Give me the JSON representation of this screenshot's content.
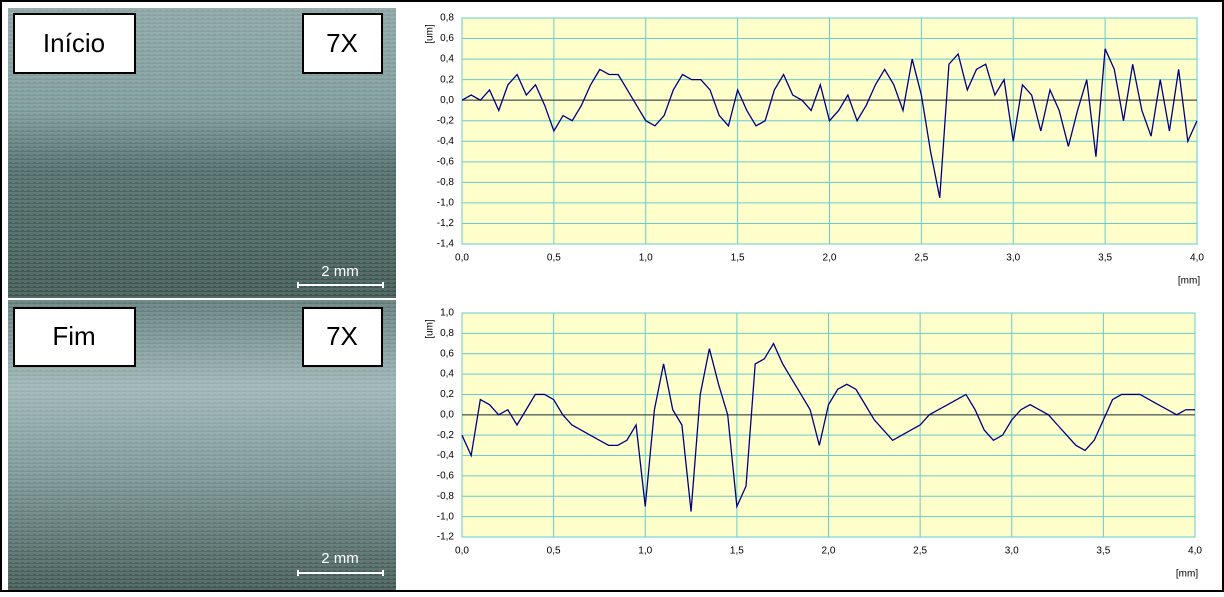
{
  "images": [
    {
      "label": "Início",
      "magnification": "7X",
      "scale": "2 mm"
    },
    {
      "label": "Fim",
      "magnification": "7X",
      "scale": "2 mm"
    }
  ],
  "chart_data": [
    {
      "type": "line",
      "ylabel": "[um]",
      "xlabel": "[mm]",
      "grid": true,
      "xlim": [
        0,
        4
      ],
      "ylim": [
        -1.4,
        0.8
      ],
      "xticks": [
        {
          "value": 0,
          "label": "0,0"
        },
        {
          "value": 0.5,
          "label": "0,5"
        },
        {
          "value": 1,
          "label": "1,0"
        },
        {
          "value": 1.5,
          "label": "1,5"
        },
        {
          "value": 2,
          "label": "2,0"
        },
        {
          "value": 2.5,
          "label": "2,5"
        },
        {
          "value": 3,
          "label": "3,0"
        },
        {
          "value": 3.5,
          "label": "3,5"
        },
        {
          "value": 4,
          "label": "4,0"
        }
      ],
      "yticks": [
        {
          "value": -1.4,
          "label": "-1,4"
        },
        {
          "value": -1.2,
          "label": "-1,2"
        },
        {
          "value": -1,
          "label": "-1,0"
        },
        {
          "value": -0.8,
          "label": "-0,8"
        },
        {
          "value": -0.6,
          "label": "-0,6"
        },
        {
          "value": -0.4,
          "label": "-0,4"
        },
        {
          "value": -0.2,
          "label": "-0,2"
        },
        {
          "value": 0,
          "label": "0,0"
        },
        {
          "value": 0.2,
          "label": "0,2"
        },
        {
          "value": 0.4,
          "label": "0,4"
        },
        {
          "value": 0.6,
          "label": "0,6"
        },
        {
          "value": 0.8,
          "label": "0,8"
        }
      ],
      "x": [
        0,
        0.05,
        0.1,
        0.15,
        0.2,
        0.25,
        0.3,
        0.35,
        0.4,
        0.45,
        0.5,
        0.55,
        0.6,
        0.65,
        0.7,
        0.75,
        0.8,
        0.85,
        0.9,
        0.95,
        1,
        1.05,
        1.1,
        1.15,
        1.2,
        1.25,
        1.3,
        1.35,
        1.4,
        1.45,
        1.5,
        1.55,
        1.6,
        1.65,
        1.7,
        1.75,
        1.8,
        1.85,
        1.9,
        1.95,
        2,
        2.05,
        2.1,
        2.15,
        2.2,
        2.25,
        2.3,
        2.35,
        2.4,
        2.45,
        2.5,
        2.55,
        2.6,
        2.65,
        2.7,
        2.75,
        2.8,
        2.85,
        2.9,
        2.95,
        3,
        3.05,
        3.1,
        3.15,
        3.2,
        3.25,
        3.3,
        3.35,
        3.4,
        3.45,
        3.5,
        3.55,
        3.6,
        3.65,
        3.7,
        3.75,
        3.8,
        3.85,
        3.9,
        3.95,
        4
      ],
      "series": [
        {
          "color": "#000080",
          "values": [
            0,
            0.05,
            0,
            0.1,
            -0.1,
            0.15,
            0.25,
            0.05,
            0.15,
            -0.05,
            -0.3,
            -0.15,
            -0.2,
            -0.05,
            0.15,
            0.3,
            0.25,
            0.25,
            0.1,
            -0.05,
            -0.2,
            -0.25,
            -0.15,
            0.1,
            0.25,
            0.2,
            0.2,
            0.1,
            -0.15,
            -0.25,
            0.1,
            -0.1,
            -0.25,
            -0.2,
            0.1,
            0.25,
            0.05,
            0,
            -0.1,
            0.15,
            -0.2,
            -0.1,
            0.05,
            -0.2,
            -0.05,
            0.15,
            0.3,
            0.15,
            -0.1,
            0.4,
            0.05,
            -0.5,
            -0.95,
            0.35,
            0.45,
            0.1,
            0.3,
            0.35,
            0.05,
            0.2,
            -0.4,
            0.15,
            0.05,
            -0.3,
            0.1,
            -0.1,
            -0.45,
            -0.1,
            0.2,
            -0.55,
            0.5,
            0.3,
            -0.2,
            0.35,
            -0.1,
            -0.35,
            0.2,
            -0.3,
            0.3,
            -0.4,
            -0.2
          ]
        }
      ]
    },
    {
      "type": "line",
      "ylabel": "[um]",
      "xlabel": "[mm]",
      "grid": true,
      "xlim": [
        0,
        4
      ],
      "ylim": [
        -1.2,
        1
      ],
      "xticks": [
        {
          "value": 0,
          "label": "0,0"
        },
        {
          "value": 0.5,
          "label": "0,5"
        },
        {
          "value": 1,
          "label": "1,0"
        },
        {
          "value": 1.5,
          "label": "1,5"
        },
        {
          "value": 2,
          "label": "2,0"
        },
        {
          "value": 2.5,
          "label": "2,5"
        },
        {
          "value": 3,
          "label": "3,0"
        },
        {
          "value": 3.5,
          "label": "3,5"
        },
        {
          "value": 4,
          "label": "4,0"
        }
      ],
      "yticks": [
        {
          "value": -1.2,
          "label": "-1,2"
        },
        {
          "value": -1,
          "label": "-1,0"
        },
        {
          "value": -0.8,
          "label": "-0,8"
        },
        {
          "value": -0.6,
          "label": "-0,6"
        },
        {
          "value": -0.4,
          "label": "-0,4"
        },
        {
          "value": -0.2,
          "label": "-0,2"
        },
        {
          "value": 0,
          "label": "0,0"
        },
        {
          "value": 0.2,
          "label": "0,2"
        },
        {
          "value": 0.4,
          "label": "0,4"
        },
        {
          "value": 0.6,
          "label": "0,6"
        },
        {
          "value": 0.8,
          "label": "0,8"
        },
        {
          "value": 1,
          "label": "1,0"
        }
      ],
      "x": [
        0,
        0.05,
        0.1,
        0.15,
        0.2,
        0.25,
        0.3,
        0.35,
        0.4,
        0.45,
        0.5,
        0.55,
        0.6,
        0.65,
        0.7,
        0.75,
        0.8,
        0.85,
        0.9,
        0.95,
        1,
        1.05,
        1.1,
        1.15,
        1.2,
        1.25,
        1.3,
        1.35,
        1.4,
        1.45,
        1.5,
        1.55,
        1.6,
        1.65,
        1.7,
        1.75,
        1.8,
        1.85,
        1.9,
        1.95,
        2,
        2.05,
        2.1,
        2.15,
        2.2,
        2.25,
        2.3,
        2.35,
        2.4,
        2.45,
        2.5,
        2.55,
        2.6,
        2.65,
        2.7,
        2.75,
        2.8,
        2.85,
        2.9,
        2.95,
        3,
        3.05,
        3.1,
        3.15,
        3.2,
        3.25,
        3.3,
        3.35,
        3.4,
        3.45,
        3.5,
        3.55,
        3.6,
        3.65,
        3.7,
        3.75,
        3.8,
        3.85,
        3.9,
        3.95,
        4
      ],
      "series": [
        {
          "color": "#000080",
          "values": [
            -0.2,
            -0.4,
            0.15,
            0.1,
            0,
            0.05,
            -0.1,
            0.05,
            0.2,
            0.2,
            0.15,
            0,
            -0.1,
            -0.15,
            -0.2,
            -0.25,
            -0.3,
            -0.3,
            -0.25,
            -0.1,
            -0.9,
            0.05,
            0.5,
            0.05,
            -0.1,
            -0.95,
            0.2,
            0.65,
            0.3,
            0,
            -0.9,
            -0.7,
            0.5,
            0.55,
            0.7,
            0.5,
            0.35,
            0.2,
            0.05,
            -0.3,
            0.1,
            0.25,
            0.3,
            0.25,
            0.1,
            -0.05,
            -0.15,
            -0.25,
            -0.2,
            -0.15,
            -0.1,
            0,
            0.05,
            0.1,
            0.15,
            0.2,
            0.05,
            -0.15,
            -0.25,
            -0.2,
            -0.05,
            0.05,
            0.1,
            0.05,
            0,
            -0.1,
            -0.2,
            -0.3,
            -0.35,
            -0.25,
            -0.05,
            0.15,
            0.2,
            0.2,
            0.2,
            0.15,
            0.1,
            0.05,
            0,
            0.05,
            0.05
          ]
        }
      ]
    }
  ]
}
